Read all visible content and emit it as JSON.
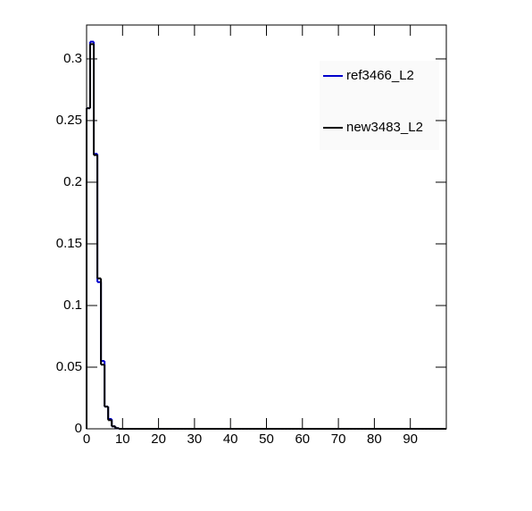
{
  "chart_data": {
    "type": "histogram",
    "bins": [
      0,
      1,
      2,
      3,
      4,
      5,
      6,
      7,
      8,
      9,
      10,
      11,
      12,
      13,
      14,
      15,
      16,
      17,
      18,
      19,
      20,
      21,
      22,
      23,
      24,
      25,
      26,
      27,
      28,
      29,
      30,
      31,
      32,
      33,
      34,
      35,
      36,
      37,
      38,
      39,
      40,
      41,
      42,
      43,
      44,
      45,
      46,
      47,
      48,
      49,
      50,
      51,
      52,
      53,
      54,
      55,
      56,
      57,
      58,
      59,
      60,
      61,
      62,
      63,
      64,
      65,
      66,
      67,
      68,
      69,
      70,
      71,
      72,
      73,
      74,
      75,
      76,
      77,
      78,
      79,
      80,
      81,
      82,
      83,
      84,
      85,
      86,
      87,
      88,
      89,
      90,
      91,
      92,
      93,
      94,
      95,
      96,
      97,
      98,
      99,
      100
    ],
    "series": [
      {
        "name": "ref3466_L2",
        "color": "#0000cc",
        "values": [
          0.26,
          0.314,
          0.223,
          0.119,
          0.055,
          0.018,
          0.008,
          0.002,
          0.0005,
          0,
          0,
          0,
          0,
          0,
          0,
          0,
          0,
          0,
          0,
          0,
          0,
          0,
          0,
          0,
          0,
          0,
          0,
          0,
          0,
          0,
          0,
          0,
          0,
          0,
          0,
          0,
          0,
          0,
          0,
          0,
          0,
          0,
          0,
          0,
          0,
          0,
          0,
          0,
          0,
          0,
          0,
          0,
          0,
          0,
          0,
          0,
          0,
          0,
          0,
          0,
          0,
          0,
          0,
          0,
          0,
          0,
          0,
          0,
          0,
          0,
          0,
          0,
          0,
          0,
          0,
          0,
          0,
          0,
          0,
          0,
          0,
          0,
          0,
          0,
          0,
          0,
          0,
          0,
          0,
          0,
          0,
          0,
          0,
          0,
          0,
          0,
          0,
          0,
          0,
          0
        ]
      },
      {
        "name": "new3483_L2",
        "color": "#000000",
        "values": [
          0.26,
          0.312,
          0.222,
          0.122,
          0.052,
          0.018,
          0.007,
          0.002,
          0.0005,
          0,
          0,
          0,
          0,
          0,
          0,
          0,
          0,
          0,
          0,
          0,
          0,
          0,
          0,
          0,
          0,
          0,
          0,
          0,
          0,
          0,
          0,
          0,
          0,
          0,
          0,
          0,
          0,
          0,
          0,
          0,
          0,
          0,
          0,
          0,
          0,
          0,
          0,
          0,
          0,
          0,
          0,
          0,
          0,
          0,
          0,
          0,
          0,
          0,
          0,
          0,
          0,
          0,
          0,
          0,
          0,
          0,
          0,
          0,
          0,
          0,
          0,
          0,
          0,
          0,
          0,
          0,
          0,
          0,
          0,
          0,
          0,
          0,
          0,
          0,
          0,
          0,
          0,
          0,
          0,
          0,
          0,
          0,
          0,
          0,
          0,
          0,
          0,
          0,
          0,
          0
        ]
      }
    ],
    "xlim": [
      0,
      100
    ],
    "ylim": [
      0,
      0.3275
    ],
    "xticks": [
      0,
      10,
      20,
      30,
      40,
      50,
      60,
      70,
      80,
      90
    ],
    "yticks": [
      0,
      0.05,
      0.1,
      0.15,
      0.2,
      0.25,
      0.3
    ],
    "legend": "upper-right"
  }
}
